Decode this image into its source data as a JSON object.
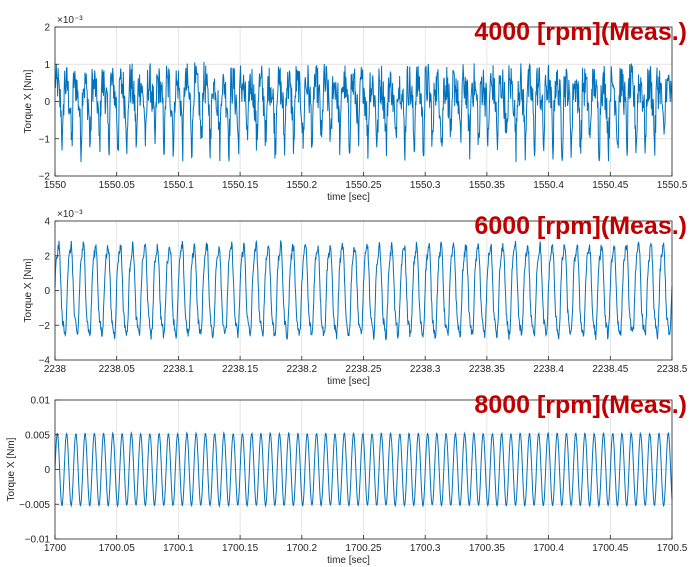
{
  "chart_data": [
    {
      "type": "line",
      "annotation": "4000 [rpm](Meas.)",
      "xlabel": "time [sec]",
      "ylabel": "Torque X [Nm]",
      "xlim": [
        1550,
        1550.5
      ],
      "ylim": [
        -0.002,
        0.002
      ],
      "y_exponent_label": "×10⁻³",
      "x_ticks": [
        1550,
        1550.05,
        1550.1,
        1550.15,
        1550.2,
        1550.25,
        1550.3,
        1550.35,
        1550.4,
        1550.45,
        1550.5
      ],
      "x_tick_labels": [
        "1550",
        "1550.05",
        "1550.1",
        "1550.15",
        "1550.2",
        "1550.25",
        "1550.3",
        "1550.35",
        "1550.4",
        "1550.45",
        "1550.5"
      ],
      "y_ticks": [
        -0.002,
        -0.001,
        0,
        0.001,
        0.002
      ],
      "y_tick_labels": [
        "−2",
        "−1",
        "0",
        "1",
        "2"
      ],
      "grid": true,
      "signal": {
        "components": [
          {
            "freq_hz": 133.3,
            "amp": 0.00065
          },
          {
            "freq_hz": 266.7,
            "amp": 0.0003
          },
          {
            "freq_hz": 400,
            "amp": 0.0002
          }
        ],
        "noise_amp": 0.00055,
        "approx_peak": 0.0019
      }
    },
    {
      "type": "line",
      "annotation": "6000 [rpm](Meas.)",
      "xlabel": "time [sec]",
      "ylabel": "Torque X [Nm]",
      "xlim": [
        2238,
        2238.5
      ],
      "ylim": [
        -0.004,
        0.004
      ],
      "y_exponent_label": "×10⁻³",
      "x_ticks": [
        2238,
        2238.05,
        2238.1,
        2238.15,
        2238.2,
        2238.25,
        2238.3,
        2238.35,
        2238.4,
        2238.45,
        2238.5
      ],
      "x_tick_labels": [
        "2238",
        "2238.05",
        "2238.1",
        "2238.15",
        "2238.2",
        "2238.25",
        "2238.3",
        "2238.35",
        "2238.4",
        "2238.45",
        "2238.5"
      ],
      "y_ticks": [
        -0.004,
        -0.002,
        0,
        0.002,
        0.004
      ],
      "y_tick_labels": [
        "−4",
        "−2",
        "0",
        "2",
        "4"
      ],
      "grid": true,
      "signal": {
        "components": [
          {
            "freq_hz": 100,
            "amp": 0.0026
          },
          {
            "freq_hz": 300,
            "amp": 0.00035
          }
        ],
        "noise_amp": 0.0003,
        "approx_peak": 0.0034
      }
    },
    {
      "type": "line",
      "annotation": "8000 [rpm](Meas.)",
      "xlabel": "time [sec]",
      "ylabel": "Torque X [Nm]",
      "xlim": [
        1700,
        1700.5
      ],
      "ylim": [
        -0.01,
        0.01
      ],
      "y_exponent_label": "",
      "x_ticks": [
        1700,
        1700.05,
        1700.1,
        1700.15,
        1700.2,
        1700.25,
        1700.3,
        1700.35,
        1700.4,
        1700.45,
        1700.5
      ],
      "x_tick_labels": [
        "1700",
        "1700.05",
        "1700.1",
        "1700.15",
        "1700.2",
        "1700.25",
        "1700.3",
        "1700.35",
        "1700.4",
        "1700.45",
        "1700.5"
      ],
      "y_ticks": [
        -0.01,
        -0.005,
        0,
        0.005,
        0.01
      ],
      "y_tick_labels": [
        "−0.01",
        "−0.005",
        "0",
        "0.005",
        "0.01"
      ],
      "grid": true,
      "signal": {
        "components": [
          {
            "freq_hz": 133.3,
            "amp": 0.0052
          }
        ],
        "noise_amp": 0.0001,
        "approx_peak": 0.0054
      }
    }
  ]
}
